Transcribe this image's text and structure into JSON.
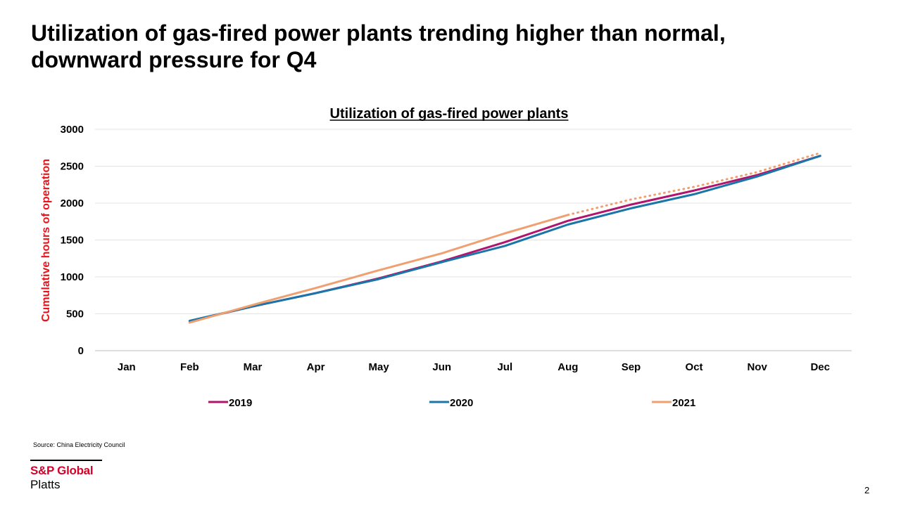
{
  "slide": {
    "title_line1": "Utilization of gas-fired power plants trending higher than normal,",
    "title_line2": "downward pressure for Q4",
    "source": "Source: China Electricity Council",
    "page_number": "2"
  },
  "logo": {
    "line1": "S&P Global",
    "line2": "Platts",
    "color": "#d6002a"
  },
  "chart_data": {
    "type": "line",
    "title": "Utilization of gas-fired power plants",
    "xlabel": "",
    "ylabel": "Cumulative hours of operation",
    "ylabel_color": "#e8131b",
    "categories": [
      "Jan",
      "Feb",
      "Mar",
      "Apr",
      "May",
      "Jun",
      "Jul",
      "Aug",
      "Sep",
      "Oct",
      "Nov",
      "Dec"
    ],
    "ylim": [
      0,
      3000
    ],
    "yticks": [
      "0",
      "500",
      "1000",
      "1500",
      "2000",
      "2500",
      "3000"
    ],
    "grid": true,
    "legend_position": "bottom",
    "series": [
      {
        "name": "2019",
        "color": "#b0156e",
        "values": [
          null,
          400,
          600,
          780,
          980,
          1210,
          1470,
          1760,
          1980,
          2170,
          2380,
          2640
        ],
        "dashed_from_index": null
      },
      {
        "name": "2020",
        "color": "#1a75a8",
        "values": [
          null,
          405,
          600,
          780,
          970,
          1200,
          1420,
          1710,
          1930,
          2120,
          2360,
          2640
        ],
        "dashed_from_index": null
      },
      {
        "name": "2021",
        "color": "#f0a070",
        "values": [
          null,
          380,
          620,
          850,
          1090,
          1320,
          1590,
          1840,
          2050,
          2220,
          2420,
          2680
        ],
        "dashed_from_index": 7
      }
    ]
  }
}
